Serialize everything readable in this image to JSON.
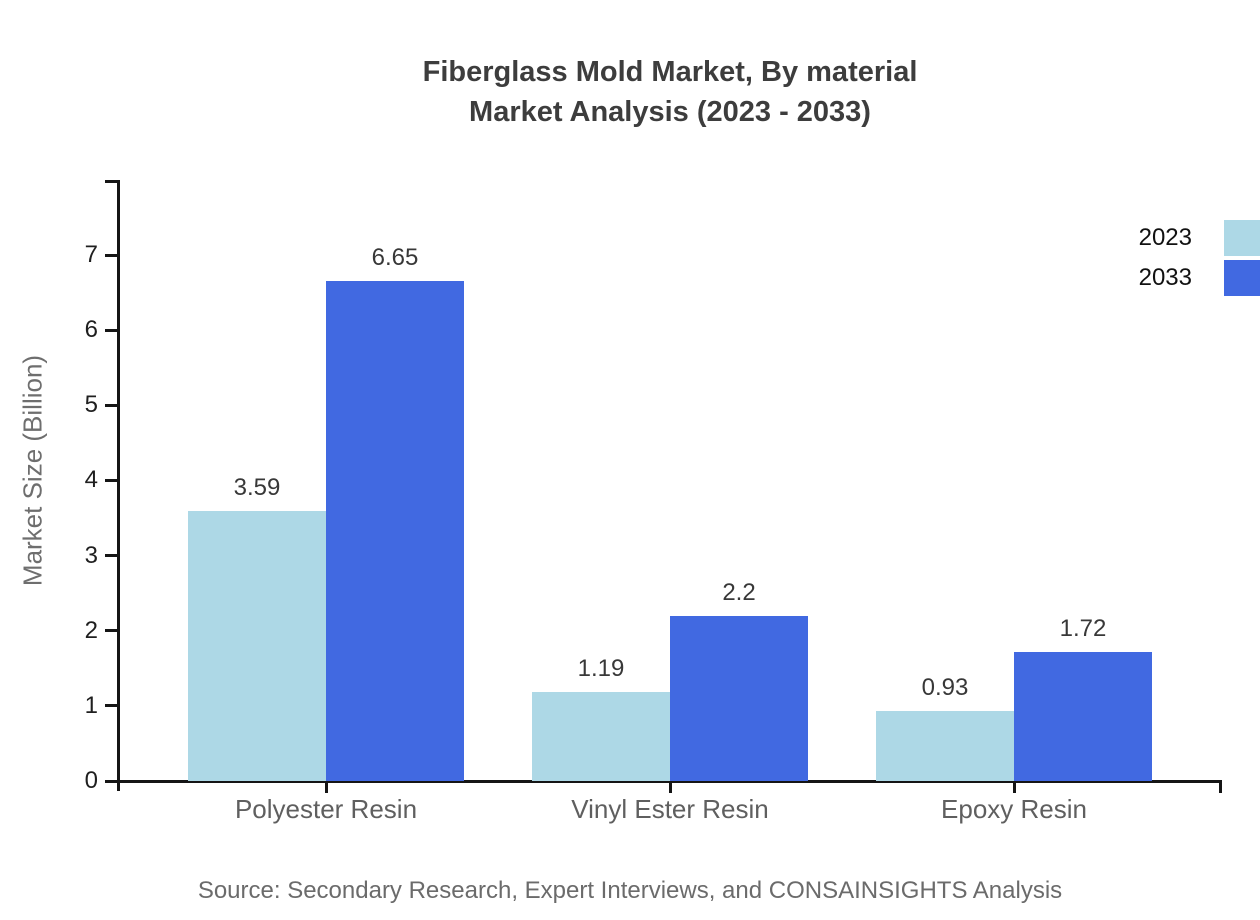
{
  "title": {
    "line1": "Fiberglass Mold Market, By material",
    "line2": "Market Analysis (2023 - 2033)"
  },
  "source": "Source: Secondary Research, Expert Interviews, and CONSAINSIGHTS Analysis",
  "chart_data": {
    "type": "bar",
    "title": "Fiberglass Mold Market, By material Market Analysis (2023 - 2033)",
    "categories": [
      "Polyester Resin",
      "Vinyl Ester Resin",
      "Epoxy Resin"
    ],
    "series": [
      {
        "name": "2023",
        "color": "#add8e6",
        "values": [
          3.59,
          1.19,
          0.93
        ]
      },
      {
        "name": "2033",
        "color": "#4169e1",
        "values": [
          6.65,
          2.2,
          1.72
        ]
      }
    ],
    "xlabel": "",
    "ylabel": "Market Size (Billion)",
    "ylim": [
      0,
      8
    ],
    "yticks": [
      0,
      1,
      2,
      3,
      4,
      5,
      6,
      7
    ],
    "grid": false,
    "legend_position": "top-right",
    "axis_color": "#151515"
  }
}
